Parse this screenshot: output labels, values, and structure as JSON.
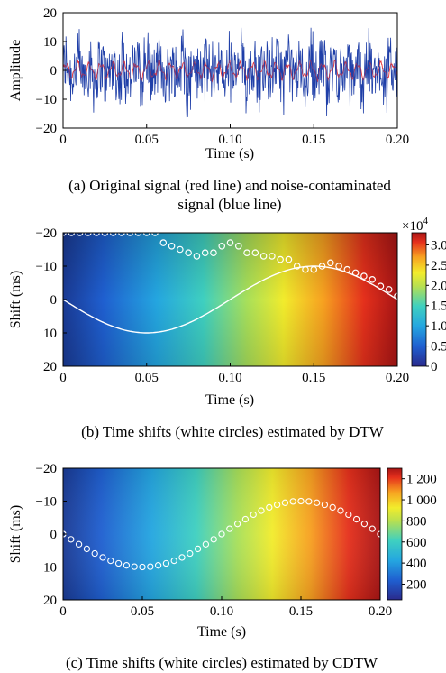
{
  "chart_data": [
    {
      "type": "line",
      "caption": "(a)  Original signal (red line) and noise-contaminated signal (blue line)",
      "caption_lines": [
        "(a)  Original signal (red line) and noise-contaminated",
        "signal (blue line)"
      ],
      "xlabel": "Time (s)",
      "ylabel": "Amplitude",
      "xlim": [
        0,
        0.2
      ],
      "ylim": [
        -20,
        20
      ],
      "xticks": [
        "0",
        "0.05",
        "0.10",
        "0.15",
        "0.20"
      ],
      "yticks": [
        "20",
        "10",
        "0",
        "−10",
        "−20"
      ],
      "series": [
        {
          "legend": "Original signal",
          "color": "#e8383d",
          "amplitude_range": [
            -4,
            4
          ]
        },
        {
          "legend": "Noise-contaminated signal",
          "color": "#1f3fa8",
          "amplitude_range": [
            -15,
            15
          ]
        }
      ]
    },
    {
      "type": "heatmap",
      "caption": "(b) Time shifts (white circles) estimated by DTW",
      "xlabel": "Time (s)",
      "ylabel": "Shift (ms)",
      "xlim": [
        0,
        0.2
      ],
      "ylim": [
        -20,
        20
      ],
      "xticks": [
        "0",
        "0.05",
        "0.10",
        "0.15",
        "0.20"
      ],
      "yticks": [
        "−20",
        "−10",
        "0",
        "10",
        "20"
      ],
      "colorbar": {
        "ticks": [
          "3.0",
          "2.5",
          "2.0",
          "1.5",
          "1.0",
          "0.5",
          "0"
        ],
        "tick_values": [
          3.0,
          2.5,
          2.0,
          1.5,
          1.0,
          0.5,
          0
        ],
        "range": [
          0,
          3.3
        ],
        "multiplier_base": "×10",
        "multiplier_exp": "4"
      },
      "true_shift_curve": {
        "t": [
          0,
          0.05,
          0.1,
          0.15,
          0.2
        ],
        "shift_ms": [
          0,
          10,
          0,
          -10,
          0
        ]
      },
      "estimated_shifts": {
        "t": [
          0,
          0.005,
          0.01,
          0.015,
          0.02,
          0.025,
          0.03,
          0.035,
          0.04,
          0.045,
          0.05,
          0.055,
          0.06,
          0.065,
          0.07,
          0.075,
          0.08,
          0.085,
          0.09,
          0.095,
          0.1,
          0.105,
          0.11,
          0.115,
          0.12,
          0.125,
          0.13,
          0.135,
          0.14,
          0.145,
          0.15,
          0.155,
          0.16,
          0.165,
          0.17,
          0.175,
          0.18,
          0.185,
          0.19,
          0.195,
          0.2
        ],
        "shift_ms": [
          -20,
          -20,
          -20,
          -20,
          -20,
          -20,
          -20,
          -20,
          -20,
          -20,
          -20,
          -20,
          -17,
          -16,
          -15,
          -14,
          -13,
          -14,
          -14,
          -16,
          -17,
          -16,
          -14,
          -14,
          -13,
          -13,
          -12,
          -12,
          -10,
          -9,
          -9,
          -10,
          -11,
          -10,
          -9,
          -8,
          -7,
          -6,
          -4,
          -3,
          -1
        ]
      }
    },
    {
      "type": "heatmap",
      "caption": "(c) Time shifts (white circles) estimated by CDTW",
      "xlabel": "Time (s)",
      "ylabel": "Shift (ms)",
      "xlim": [
        0,
        0.2
      ],
      "ylim": [
        -20,
        20
      ],
      "xticks": [
        "0",
        "0.05",
        "0.10",
        "0.15",
        "0.20"
      ],
      "yticks": [
        "−20",
        "−10",
        "0",
        "10",
        "20"
      ],
      "colorbar": {
        "ticks": [
          "1 200",
          "1 000",
          "800",
          "600",
          "400",
          "200"
        ],
        "tick_values": [
          1200,
          1000,
          800,
          600,
          400,
          200
        ],
        "range": [
          50,
          1300
        ]
      },
      "estimated_shifts": {
        "t": [
          0,
          0.005,
          0.01,
          0.015,
          0.02,
          0.025,
          0.03,
          0.035,
          0.04,
          0.045,
          0.05,
          0.055,
          0.06,
          0.065,
          0.07,
          0.075,
          0.08,
          0.085,
          0.09,
          0.095,
          0.1,
          0.105,
          0.11,
          0.115,
          0.12,
          0.125,
          0.13,
          0.135,
          0.14,
          0.145,
          0.15,
          0.155,
          0.16,
          0.165,
          0.17,
          0.175,
          0.18,
          0.185,
          0.19,
          0.195,
          0.2
        ],
        "shift_ms": [
          0,
          1.6,
          3.1,
          4.5,
          5.9,
          7.1,
          8.1,
          8.9,
          9.5,
          9.9,
          10,
          9.9,
          9.5,
          8.9,
          8.1,
          7.1,
          5.9,
          4.5,
          3.1,
          1.6,
          0,
          -1.6,
          -3.1,
          -4.5,
          -5.9,
          -7.1,
          -8.1,
          -8.9,
          -9.5,
          -9.9,
          -10,
          -9.9,
          -9.5,
          -8.9,
          -8.1,
          -7.1,
          -5.9,
          -4.5,
          -3.1,
          -1.6,
          0
        ]
      }
    }
  ]
}
